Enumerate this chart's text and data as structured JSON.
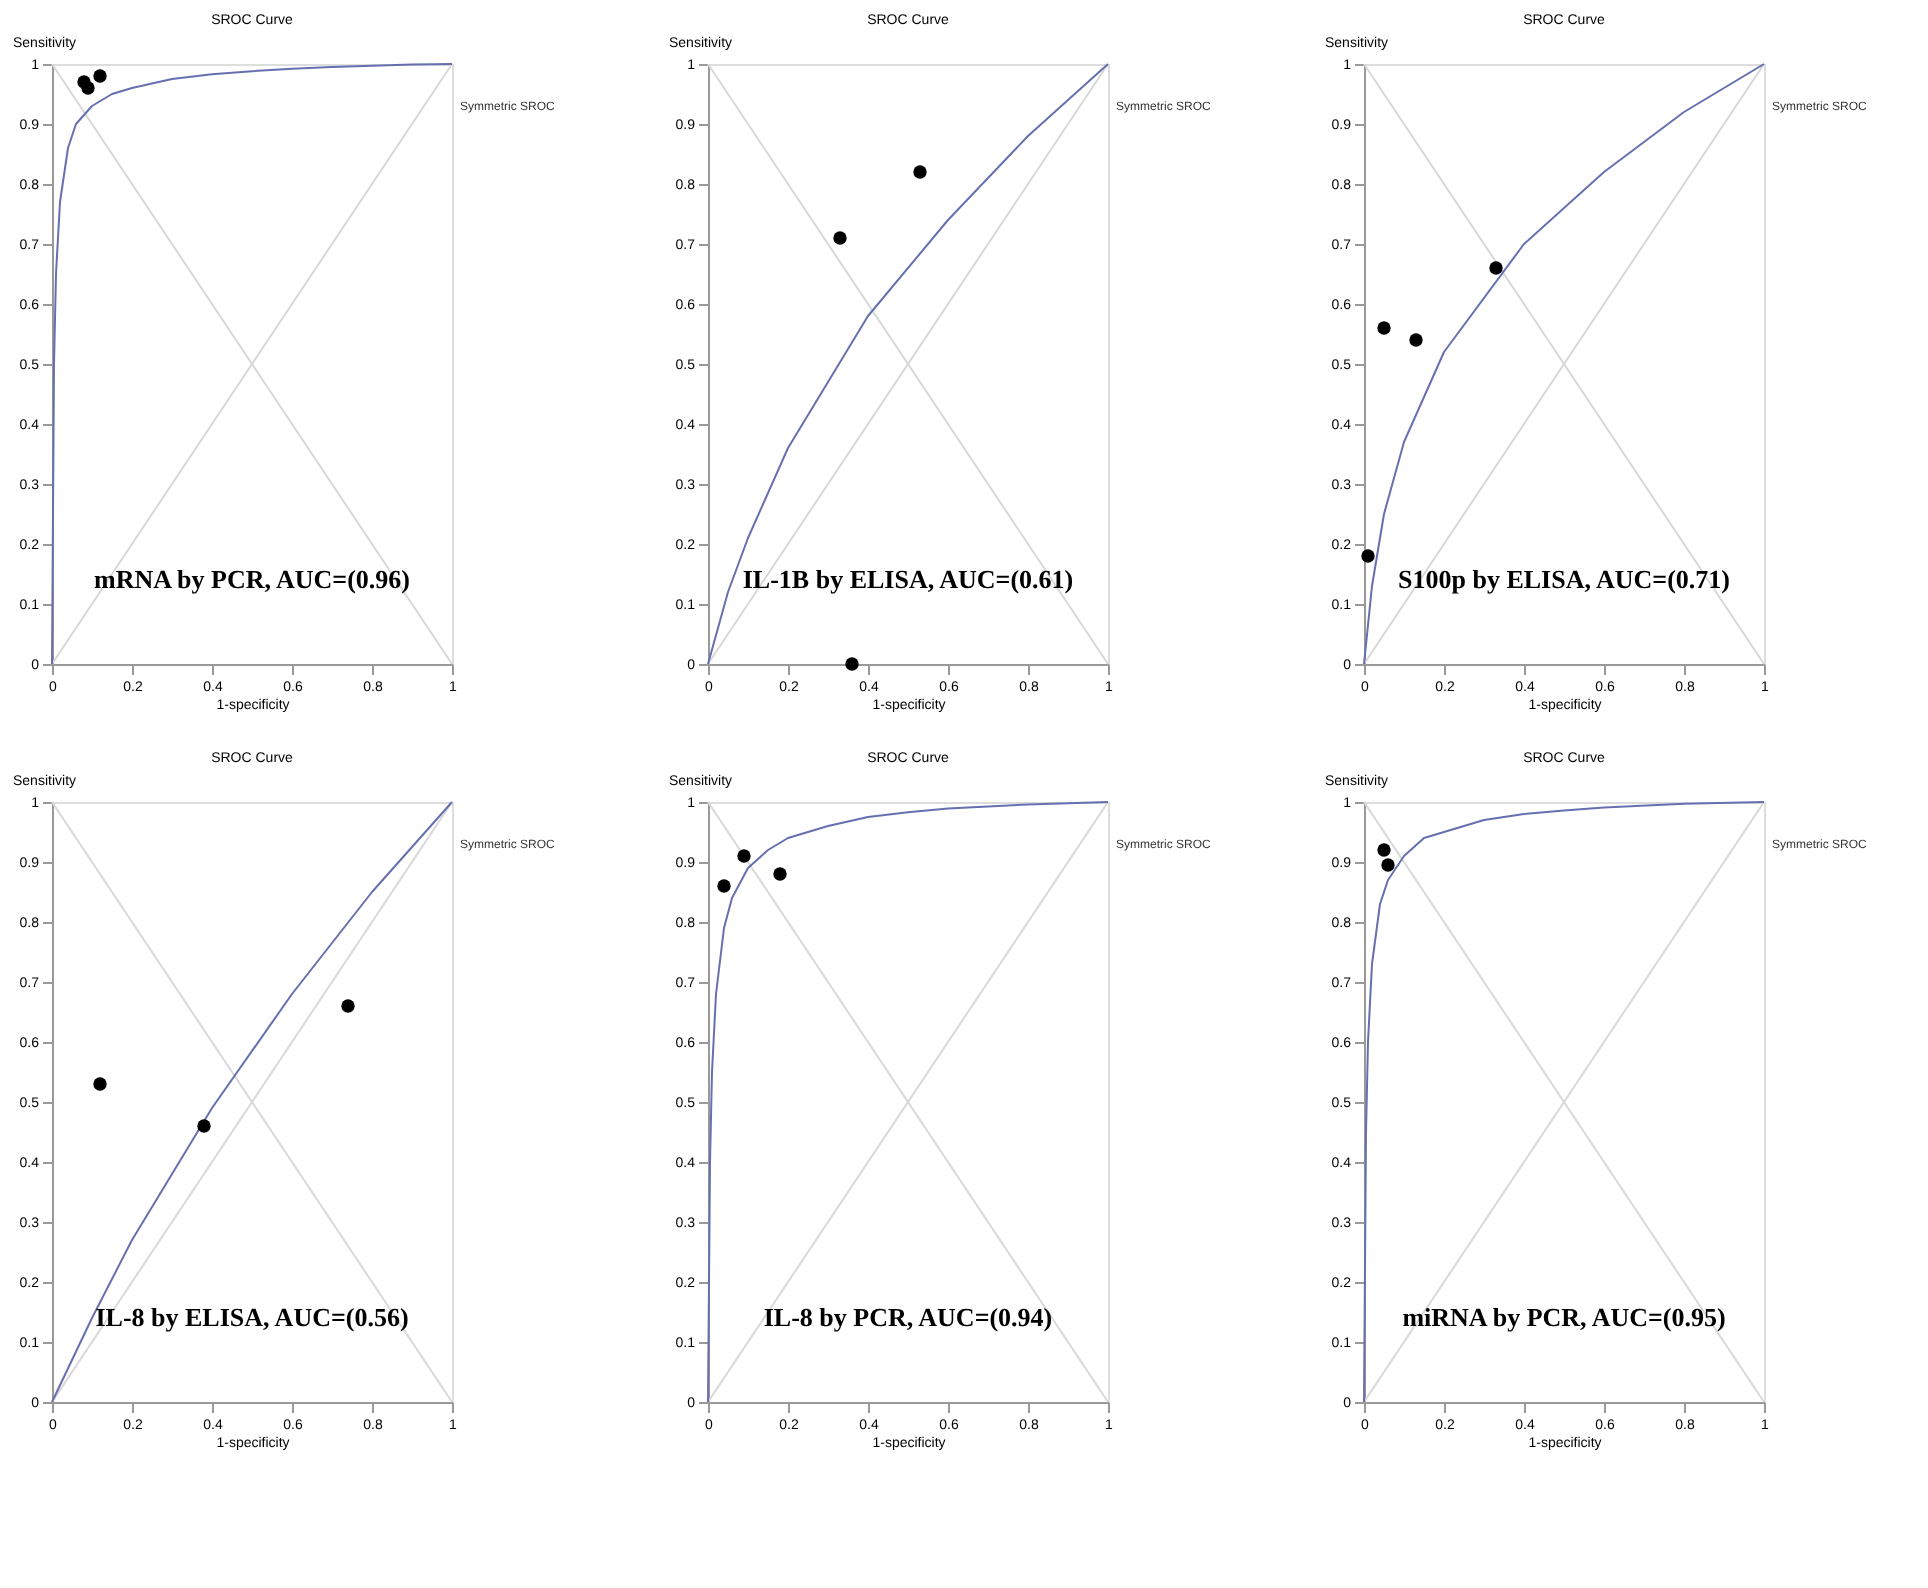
{
  "chart_data": [
    {
      "type": "scatter",
      "title": "SROC Curve",
      "xlabel": "1-specificity",
      "ylabel": "Sensitivity",
      "xlim": [
        0,
        1
      ],
      "ylim": [
        0,
        1
      ],
      "xticks": [
        0,
        0.2,
        0.4,
        0.6,
        0.8,
        1
      ],
      "yticks": [
        0,
        0.1,
        0.2,
        0.3,
        0.4,
        0.5,
        0.6,
        0.7,
        0.8,
        0.9,
        1
      ],
      "grid": false,
      "legend": false,
      "marker": "circle",
      "annotations": [
        "Symmetric SROC",
        "mRNA by PCR, AUC=(0.96)"
      ],
      "series": [
        {
          "type": "line",
          "color": "#d8d8d8",
          "marker": "none",
          "line_style": "solid",
          "x": [
            0,
            1
          ],
          "values": [
            0,
            1
          ]
        },
        {
          "type": "line",
          "color": "#d8d8d8",
          "marker": "none",
          "line_style": "solid",
          "x": [
            0,
            1
          ],
          "values": [
            1,
            0
          ]
        },
        {
          "type": "line",
          "color": "#6670b0",
          "marker": "none",
          "line_style": "solid",
          "x": [
            0,
            0.005,
            0.01,
            0.02,
            0.04,
            0.06,
            0.1,
            0.15,
            0.2,
            0.3,
            0.4,
            0.5,
            0.6,
            0.7,
            0.8,
            0.9,
            1
          ],
          "values": [
            0,
            0.5,
            0.65,
            0.77,
            0.86,
            0.9,
            0.93,
            0.95,
            0.96,
            0.975,
            0.983,
            0.988,
            0.992,
            0.995,
            0.997,
            0.999,
            1
          ]
        },
        {
          "type": "scatter",
          "color": "#000000",
          "x": [
            0.08,
            0.09,
            0.12
          ],
          "values": [
            0.97,
            0.96,
            0.98
          ]
        }
      ]
    },
    {
      "type": "scatter",
      "title": "SROC Curve",
      "xlabel": "1-specificity",
      "ylabel": "Sensitivity",
      "xlim": [
        0,
        1
      ],
      "ylim": [
        0,
        1
      ],
      "xticks": [
        0,
        0.2,
        0.4,
        0.6,
        0.8,
        1
      ],
      "yticks": [
        0,
        0.1,
        0.2,
        0.3,
        0.4,
        0.5,
        0.6,
        0.7,
        0.8,
        0.9,
        1
      ],
      "grid": false,
      "legend": false,
      "marker": "circle",
      "annotations": [
        "Symmetric SROC",
        "IL-1B by ELISA, AUC=(0.61)"
      ],
      "series": [
        {
          "type": "line",
          "color": "#d8d8d8",
          "marker": "none",
          "line_style": "solid",
          "x": [
            0,
            1
          ],
          "values": [
            0,
            1
          ]
        },
        {
          "type": "line",
          "color": "#d8d8d8",
          "marker": "none",
          "line_style": "solid",
          "x": [
            0,
            1
          ],
          "values": [
            1,
            0
          ]
        },
        {
          "type": "line",
          "color": "#6670b0",
          "marker": "none",
          "line_style": "solid",
          "x": [
            0,
            0.05,
            0.1,
            0.2,
            0.4,
            0.6,
            0.8,
            1
          ],
          "values": [
            0,
            0.12,
            0.21,
            0.36,
            0.58,
            0.74,
            0.88,
            1
          ]
        },
        {
          "type": "scatter",
          "color": "#000000",
          "x": [
            0.33,
            0.53,
            0.36
          ],
          "values": [
            0.71,
            0.82,
            0.0
          ]
        }
      ]
    },
    {
      "type": "scatter",
      "title": "SROC Curve",
      "xlabel": "1-specificity",
      "ylabel": "Sensitivity",
      "xlim": [
        0,
        1
      ],
      "ylim": [
        0,
        1
      ],
      "xticks": [
        0,
        0.2,
        0.4,
        0.6,
        0.8,
        1
      ],
      "yticks": [
        0,
        0.1,
        0.2,
        0.3,
        0.4,
        0.5,
        0.6,
        0.7,
        0.8,
        0.9,
        1
      ],
      "grid": false,
      "legend": false,
      "marker": "circle",
      "annotations": [
        "Symmetric SROC",
        "S100p by ELISA, AUC=(0.71)"
      ],
      "series": [
        {
          "type": "line",
          "color": "#d8d8d8",
          "marker": "none",
          "line_style": "solid",
          "x": [
            0,
            1
          ],
          "values": [
            0,
            1
          ]
        },
        {
          "type": "line",
          "color": "#d8d8d8",
          "marker": "none",
          "line_style": "solid",
          "x": [
            0,
            1
          ],
          "values": [
            1,
            0
          ]
        },
        {
          "type": "line",
          "color": "#6670b0",
          "marker": "none",
          "line_style": "solid",
          "x": [
            0,
            0.02,
            0.05,
            0.1,
            0.2,
            0.4,
            0.6,
            0.8,
            1
          ],
          "values": [
            0,
            0.13,
            0.25,
            0.37,
            0.52,
            0.7,
            0.82,
            0.92,
            1
          ]
        },
        {
          "type": "scatter",
          "color": "#000000",
          "x": [
            0.01,
            0.05,
            0.13,
            0.33
          ],
          "values": [
            0.18,
            0.56,
            0.54,
            0.66
          ]
        }
      ]
    },
    {
      "type": "scatter",
      "title": "SROC Curve",
      "xlabel": "1-specificity",
      "ylabel": "Sensitivity",
      "xlim": [
        0,
        1
      ],
      "ylim": [
        0,
        1
      ],
      "xticks": [
        0,
        0.2,
        0.4,
        0.6,
        0.8,
        1
      ],
      "yticks": [
        0,
        0.1,
        0.2,
        0.3,
        0.4,
        0.5,
        0.6,
        0.7,
        0.8,
        0.9,
        1
      ],
      "grid": false,
      "legend": false,
      "marker": "circle",
      "annotations": [
        "Symmetric SROC",
        "IL-8 by ELISA, AUC=(0.56)"
      ],
      "series": [
        {
          "type": "line",
          "color": "#d8d8d8",
          "marker": "none",
          "line_style": "solid",
          "x": [
            0,
            1
          ],
          "values": [
            0,
            1
          ]
        },
        {
          "type": "line",
          "color": "#d8d8d8",
          "marker": "none",
          "line_style": "solid",
          "x": [
            0,
            1
          ],
          "values": [
            1,
            0
          ]
        },
        {
          "type": "line",
          "color": "#6670b0",
          "marker": "none",
          "line_style": "solid",
          "x": [
            0,
            0.1,
            0.2,
            0.4,
            0.6,
            0.8,
            1
          ],
          "values": [
            0,
            0.14,
            0.27,
            0.49,
            0.68,
            0.85,
            1
          ]
        },
        {
          "type": "scatter",
          "color": "#000000",
          "x": [
            0.12,
            0.38,
            0.74
          ],
          "values": [
            0.53,
            0.46,
            0.66
          ]
        }
      ]
    },
    {
      "type": "scatter",
      "title": "SROC Curve",
      "xlabel": "1-specificity",
      "ylabel": "Sensitivity",
      "xlim": [
        0,
        1
      ],
      "ylim": [
        0,
        1
      ],
      "xticks": [
        0,
        0.2,
        0.4,
        0.6,
        0.8,
        1
      ],
      "yticks": [
        0,
        0.1,
        0.2,
        0.3,
        0.4,
        0.5,
        0.6,
        0.7,
        0.8,
        0.9,
        1
      ],
      "grid": false,
      "legend": false,
      "marker": "circle",
      "annotations": [
        "Symmetric SROC",
        "IL-8 by PCR, AUC=(0.94)"
      ],
      "series": [
        {
          "type": "line",
          "color": "#d8d8d8",
          "marker": "none",
          "line_style": "solid",
          "x": [
            0,
            1
          ],
          "values": [
            0,
            1
          ]
        },
        {
          "type": "line",
          "color": "#d8d8d8",
          "marker": "none",
          "line_style": "solid",
          "x": [
            0,
            1
          ],
          "values": [
            1,
            0
          ]
        },
        {
          "type": "line",
          "color": "#6670b0",
          "marker": "none",
          "line_style": "solid",
          "x": [
            0,
            0.005,
            0.01,
            0.02,
            0.04,
            0.06,
            0.1,
            0.15,
            0.2,
            0.3,
            0.4,
            0.5,
            0.6,
            0.8,
            1
          ],
          "values": [
            0,
            0.4,
            0.55,
            0.68,
            0.79,
            0.84,
            0.89,
            0.92,
            0.94,
            0.96,
            0.975,
            0.983,
            0.989,
            0.996,
            1
          ]
        },
        {
          "type": "scatter",
          "color": "#000000",
          "x": [
            0.04,
            0.09,
            0.18
          ],
          "values": [
            0.86,
            0.91,
            0.88
          ]
        }
      ]
    },
    {
      "type": "scatter",
      "title": "SROC Curve",
      "xlabel": "1-specificity",
      "ylabel": "Sensitivity",
      "xlim": [
        0,
        1
      ],
      "ylim": [
        0,
        1
      ],
      "xticks": [
        0,
        0.2,
        0.4,
        0.6,
        0.8,
        1
      ],
      "yticks": [
        0,
        0.1,
        0.2,
        0.3,
        0.4,
        0.5,
        0.6,
        0.7,
        0.8,
        0.9,
        1
      ],
      "grid": false,
      "legend": false,
      "marker": "circle",
      "annotations": [
        "Symmetric SROC",
        "miRNA by PCR, AUC=(0.95)"
      ],
      "series": [
        {
          "type": "line",
          "color": "#d8d8d8",
          "marker": "none",
          "line_style": "solid",
          "x": [
            0,
            1
          ],
          "values": [
            0,
            1
          ]
        },
        {
          "type": "line",
          "color": "#d8d8d8",
          "marker": "none",
          "line_style": "solid",
          "x": [
            0,
            1
          ],
          "values": [
            1,
            0
          ]
        },
        {
          "type": "line",
          "color": "#6670b0",
          "marker": "none",
          "line_style": "solid",
          "x": [
            0,
            0.005,
            0.01,
            0.02,
            0.04,
            0.06,
            0.1,
            0.15,
            0.2,
            0.3,
            0.4,
            0.5,
            0.6,
            0.8,
            1
          ],
          "values": [
            0,
            0.45,
            0.6,
            0.73,
            0.83,
            0.87,
            0.91,
            0.94,
            0.95,
            0.97,
            0.98,
            0.986,
            0.991,
            0.997,
            1
          ]
        },
        {
          "type": "scatter",
          "color": "#000000",
          "x": [
            0.05,
            0.06
          ],
          "values": [
            0.92,
            0.895
          ]
        }
      ]
    }
  ]
}
